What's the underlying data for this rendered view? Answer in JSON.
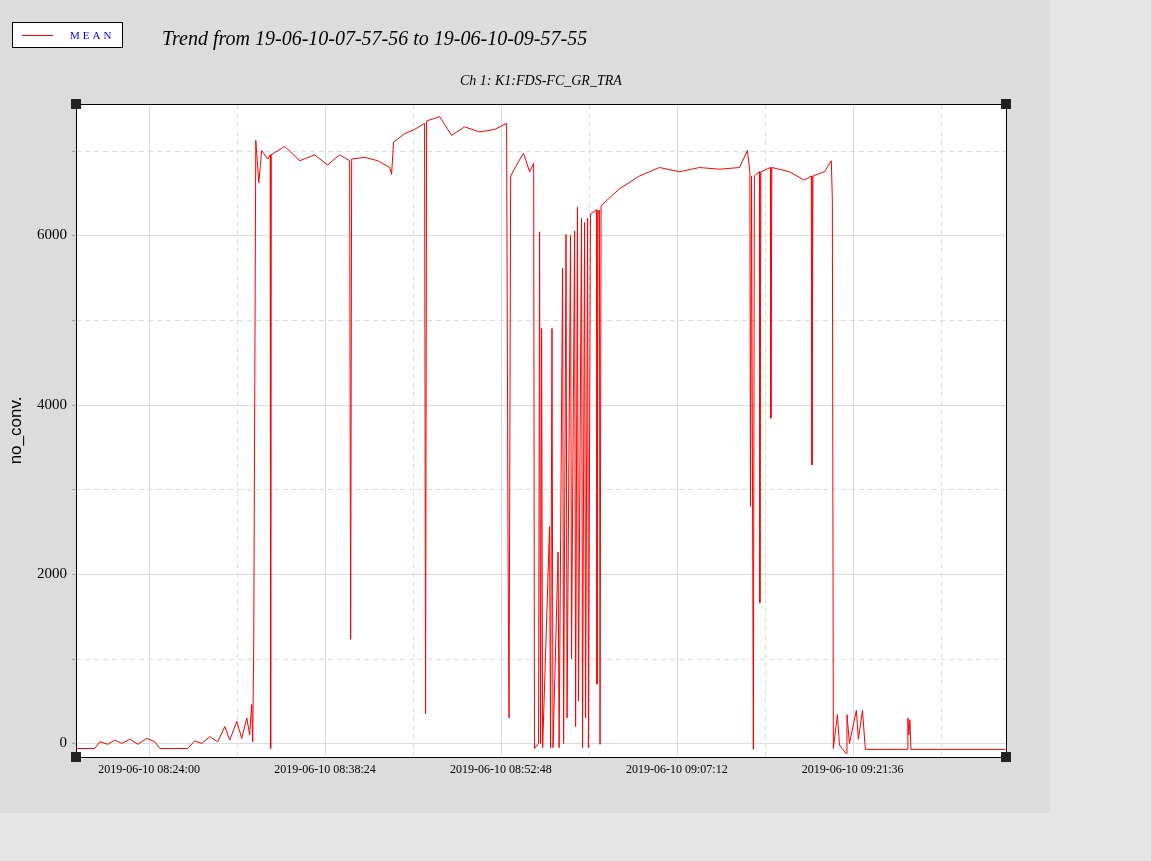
{
  "chart_data": {
    "type": "line",
    "title": "Trend from 19-06-10-07-57-56 to 19-06-10-09-57-55",
    "subtitle": "Ch 1: K1:FDS-FC_GR_TRA",
    "ylabel": "no_conv.",
    "x": [
      "2019-06-10T08:18:05",
      "2019-06-10T08:19:33",
      "2019-06-10T08:19:58",
      "2019-06-10T08:20:37",
      "2019-06-10T08:21:12",
      "2019-06-10T08:21:46",
      "2019-06-10T08:22:25",
      "2019-06-10T08:23:05",
      "2019-06-10T08:23:49",
      "2019-06-10T08:24:28",
      "2019-06-10T08:24:53",
      "2019-06-10T08:27:10",
      "2019-06-10T08:27:44",
      "2019-06-10T08:28:19",
      "2019-06-10T08:28:58",
      "2019-06-10T08:29:37",
      "2019-06-10T08:30:12",
      "2019-06-10T08:30:36",
      "2019-06-10T08:31:11",
      "2019-06-10T08:31:35",
      "2019-06-10T08:32:00",
      "2019-06-10T08:32:14",
      "2019-06-10T08:32:24",
      "2019-06-10T08:32:29",
      "2019-06-10T08:32:34",
      "2019-06-10T08:32:44",
      "2019-06-10T08:32:59",
      "2019-06-10T08:33:13",
      "2019-06-10T08:33:43",
      "2019-06-10T08:33:55",
      "2019-06-10T08:33:57",
      "2019-06-10T08:34:00",
      "2019-06-10T08:35:06",
      "2019-06-10T08:36:20",
      "2019-06-10T08:37:33",
      "2019-06-10T08:38:37",
      "2019-06-10T08:39:36",
      "2019-06-10T08:40:25",
      "2019-06-10T08:40:30",
      "2019-06-10T08:40:35",
      "2019-06-10T08:41:39",
      "2019-06-10T08:42:43",
      "2019-06-10T08:43:42",
      "2019-06-10T08:43:51",
      "2019-06-10T08:44:01",
      "2019-06-10T08:44:55",
      "2019-06-10T08:45:44",
      "2019-06-10T08:46:33",
      "2019-06-10T08:46:38",
      "2019-06-10T08:46:43",
      "2019-06-10T08:47:47",
      "2019-06-10T08:48:46",
      "2019-06-10T08:49:50",
      "2019-06-10T08:51:03",
      "2019-06-10T08:52:17",
      "2019-06-10T08:53:16",
      "2019-06-10T08:53:23",
      "2019-06-10T08:53:28",
      "2019-06-10T08:53:36",
      "2019-06-10T08:54:10",
      "2019-06-10T08:54:39",
      "2019-06-10T08:55:09",
      "2019-06-10T08:55:29",
      "2019-06-10T08:55:33",
      "2019-06-10T08:55:53",
      "2019-06-10T08:55:58",
      "2019-06-10T08:56:03",
      "2019-06-10T08:56:08",
      "2019-06-10T08:56:13",
      "2019-06-10T08:56:47",
      "2019-06-10T08:56:52",
      "2019-06-10T08:56:59",
      "2019-06-10T08:57:04",
      "2019-06-10T08:57:29",
      "2019-06-10T08:57:34",
      "2019-06-10T08:57:51",
      "2019-06-10T08:57:56",
      "2019-06-10T08:58:08",
      "2019-06-10T08:58:13",
      "2019-06-10T08:58:30",
      "2019-06-10T08:58:35",
      "2019-06-10T08:58:50",
      "2019-06-10T08:58:55",
      "2019-06-10T08:59:04",
      "2019-06-10T08:59:09",
      "2019-06-10T08:59:24",
      "2019-06-10T08:59:29",
      "2019-06-10T08:59:39",
      "2019-06-10T08:59:44",
      "2019-06-10T08:59:54",
      "2019-06-10T08:59:58",
      "2019-06-10T09:00:08",
      "2019-06-10T09:00:38",
      "2019-06-10T09:00:40",
      "2019-06-10T09:00:45",
      "2019-06-10T09:00:52",
      "2019-06-10T09:00:55",
      "2019-06-10T09:01:00",
      "2019-06-10T09:02:31",
      "2019-06-10T09:04:09",
      "2019-06-10T09:05:47",
      "2019-06-10T09:07:25",
      "2019-06-10T09:09:03",
      "2019-06-10T09:10:42",
      "2019-06-10T09:12:20",
      "2019-06-10T09:12:59",
      "2019-06-10T09:13:11",
      "2019-06-10T09:13:14",
      "2019-06-10T09:13:19",
      "2019-06-10T09:13:28",
      "2019-06-10T09:13:33",
      "2019-06-10T09:13:58",
      "2019-06-10T09:14:00",
      "2019-06-10T09:14:05",
      "2019-06-10T09:14:52",
      "2019-06-10T09:14:54",
      "2019-06-10T09:14:59",
      "2019-06-10T09:16:25",
      "2019-06-10T09:17:39",
      "2019-06-10T09:18:13",
      "2019-06-10T09:18:16",
      "2019-06-10T09:18:21",
      "2019-06-10T09:19:17",
      "2019-06-10T09:19:51",
      "2019-06-10T09:19:56",
      "2019-06-10T09:20:01",
      "2019-06-10T09:20:21",
      "2019-06-10T09:20:31",
      "2019-06-10T09:21:04",
      "2019-06-10T09:21:08",
      "2019-06-10T09:21:20",
      "2019-06-10T09:21:54",
      "2019-06-10T09:22:04",
      "2019-06-10T09:22:24",
      "2019-06-10T09:22:38",
      "2019-06-10T09:26:04",
      "2019-06-10T09:26:07",
      "2019-06-10T09:26:12",
      "2019-06-10T09:26:17",
      "2019-06-10T09:26:22",
      "2019-06-10T09:34:05"
    ],
    "series": [
      {
        "name": "MEAN",
        "color": "#ff0000",
        "values": [
          -60,
          -60,
          20,
          -10,
          40,
          0,
          50,
          -10,
          60,
          20,
          -60,
          -60,
          30,
          0,
          80,
          20,
          200,
          40,
          260,
          60,
          300,
          100,
          460,
          20,
          1180,
          7120,
          6620,
          7000,
          6900,
          6950,
          -60,
          6950,
          7050,
          6880,
          6950,
          6830,
          6950,
          6880,
          1230,
          6900,
          6920,
          6880,
          6800,
          6720,
          7100,
          7200,
          7250,
          7320,
          350,
          7350,
          7400,
          7180,
          7280,
          7220,
          7250,
          7320,
          2360,
          300,
          6700,
          6850,
          6970,
          6750,
          6850,
          -60,
          0,
          6040,
          0,
          4900,
          -50,
          2560,
          -50,
          4900,
          -50,
          2260,
          -50,
          5610,
          0,
          6010,
          300,
          6000,
          1000,
          6050,
          200,
          6330,
          500,
          6200,
          -50,
          6150,
          300,
          6200,
          -50,
          6250,
          6300,
          700,
          6250,
          6300,
          -10,
          6350,
          6550,
          6700,
          6800,
          6750,
          6800,
          6780,
          6800,
          7000,
          6750,
          2800,
          6700,
          -70,
          6700,
          6750,
          1660,
          6750,
          6800,
          3840,
          6800,
          6750,
          6650,
          6700,
          3290,
          6700,
          6750,
          6880,
          6420,
          -60,
          340,
          -20,
          -120,
          340,
          0,
          390,
          50,
          390,
          -70,
          -70,
          300,
          100,
          280,
          -70,
          -70
        ]
      }
    ],
    "xlim": [
      "2019-06-10T08:18:01",
      "2019-06-10T09:34:09"
    ],
    "xticks": [
      {
        "value": "2019-06-10T08:24:00",
        "label": "2019-06-10 08:24:00"
      },
      {
        "value": "2019-06-10T08:31:12",
        "label": null
      },
      {
        "value": "2019-06-10T08:38:24",
        "label": "2019-06-10 08:38:24"
      },
      {
        "value": "2019-06-10T08:45:36",
        "label": null
      },
      {
        "value": "2019-06-10T08:52:48",
        "label": "2019-06-10 08:52:48"
      },
      {
        "value": "2019-06-10T09:00:00",
        "label": null
      },
      {
        "value": "2019-06-10T09:07:12",
        "label": "2019-06-10 09:07:12"
      },
      {
        "value": "2019-06-10T09:14:24",
        "label": null
      },
      {
        "value": "2019-06-10T09:21:36",
        "label": "2019-06-10 09:21:36"
      },
      {
        "value": "2019-06-10T09:28:48",
        "label": null
      }
    ],
    "ylim": [
      -160,
      7550
    ],
    "yticks": [
      0,
      {
        "value": 1000,
        "label": null
      },
      2000,
      {
        "value": 3000,
        "label": null
      },
      4000,
      {
        "value": 5000,
        "label": null
      },
      6000,
      {
        "value": 7000,
        "label": null
      }
    ],
    "grid": true,
    "legend": "top left"
  }
}
